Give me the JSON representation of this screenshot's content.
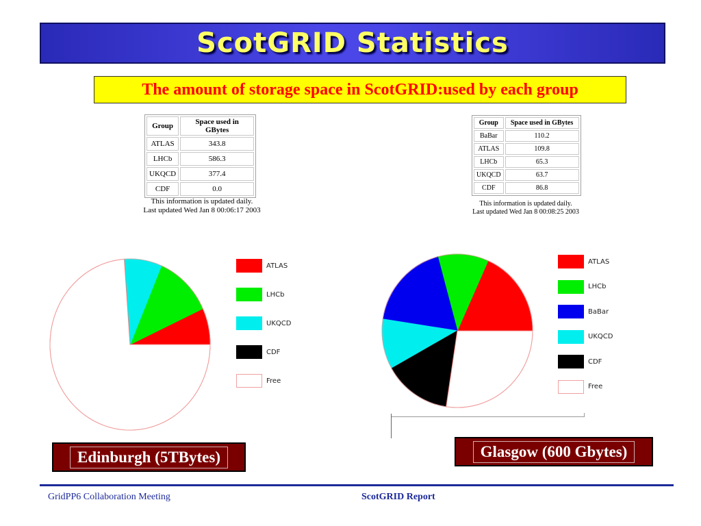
{
  "header": {
    "title": "ScotGRID Statistics",
    "subtitle": "The amount of storage space in ScotGRID:used by each group"
  },
  "colors": {
    "ATLAS": "#ff0000",
    "LHCb": "#00ee00",
    "BaBar": "#0000ee",
    "UKQCD": "#00eeee",
    "CDF": "#000000",
    "Free": "#ffffff"
  },
  "edinburgh": {
    "table": {
      "headers": [
        "Group",
        "Space used in GBytes"
      ],
      "rows": [
        [
          "ATLAS",
          "343.8"
        ],
        [
          "LHCb",
          "586.3"
        ],
        [
          "UKQCD",
          "377.4"
        ],
        [
          "CDF",
          "0.0"
        ]
      ]
    },
    "note": [
      "This information is updated daily.",
      "Last updated Wed Jan 8 00:06:17 2003"
    ],
    "legend": [
      "ATLAS",
      "LHCb",
      "UKQCD",
      "CDF",
      "Free"
    ],
    "caption": "Edinburgh (5TBytes)"
  },
  "glasgow": {
    "table": {
      "headers": [
        "Group",
        "Space used in GBytes"
      ],
      "rows": [
        [
          "BaBar",
          "110.2"
        ],
        [
          "ATLAS",
          "109.8"
        ],
        [
          "LHCb",
          "65.3"
        ],
        [
          "UKQCD",
          "63.7"
        ],
        [
          "CDF",
          "86.8"
        ]
      ]
    },
    "note": [
      "This information is updated daily.",
      "Last updated Wed Jan 8 00:08:25 2003"
    ],
    "legend": [
      "ATLAS",
      "LHCb",
      "BaBar",
      "UKQCD",
      "CDF",
      "Free"
    ],
    "caption": "Glasgow (600 Gbytes)"
  },
  "chart_data": [
    {
      "type": "pie",
      "legend_position": "right",
      "slices": [
        {
          "label": "ATLAS",
          "value": 343.8
        },
        {
          "label": "LHCb",
          "value": 586.3
        },
        {
          "label": "UKQCD",
          "value": 377.4
        },
        {
          "label": "CDF",
          "value": 0.0
        },
        {
          "label": "Free",
          "value": 3692.5
        }
      ],
      "total": 5000
    },
    {
      "type": "pie",
      "legend_position": "right",
      "slices": [
        {
          "label": "ATLAS",
          "value": 109.8
        },
        {
          "label": "LHCb",
          "value": 65.3
        },
        {
          "label": "BaBar",
          "value": 110.2
        },
        {
          "label": "UKQCD",
          "value": 63.7
        },
        {
          "label": "CDF",
          "value": 86.8
        },
        {
          "label": "Free",
          "value": 164.2
        }
      ],
      "total": 600
    }
  ],
  "footer": {
    "left": "GridPP6 Collaboration Meeting",
    "center": "ScotGRID Report"
  }
}
